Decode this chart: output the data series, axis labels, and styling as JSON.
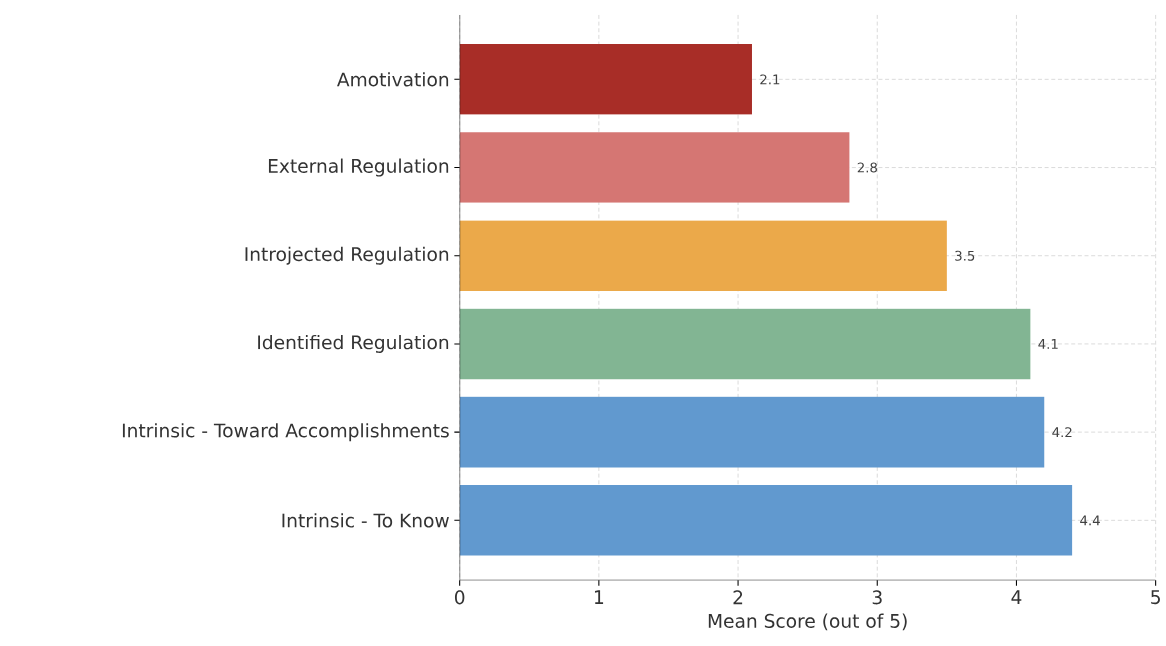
{
  "chart_data": {
    "type": "bar",
    "orientation": "horizontal",
    "xlabel": "Mean Score (out of 5)",
    "categories": [
      "Amotivation",
      "External Regulation",
      "Introjected Regulation",
      "Identified Regulation",
      "Intrinsic - Toward Accomplishments",
      "Intrinsic - To Know"
    ],
    "values": [
      2.1,
      2.8,
      3.5,
      4.1,
      4.2,
      4.4
    ],
    "colors": [
      "#a82d27",
      "#d57673",
      "#eba94a",
      "#82b593",
      "#6199cf",
      "#6199cf"
    ],
    "xlim": [
      0,
      5
    ],
    "xticks": [
      0,
      1,
      2,
      3,
      4,
      5
    ],
    "grid": true,
    "data_labels": true
  }
}
